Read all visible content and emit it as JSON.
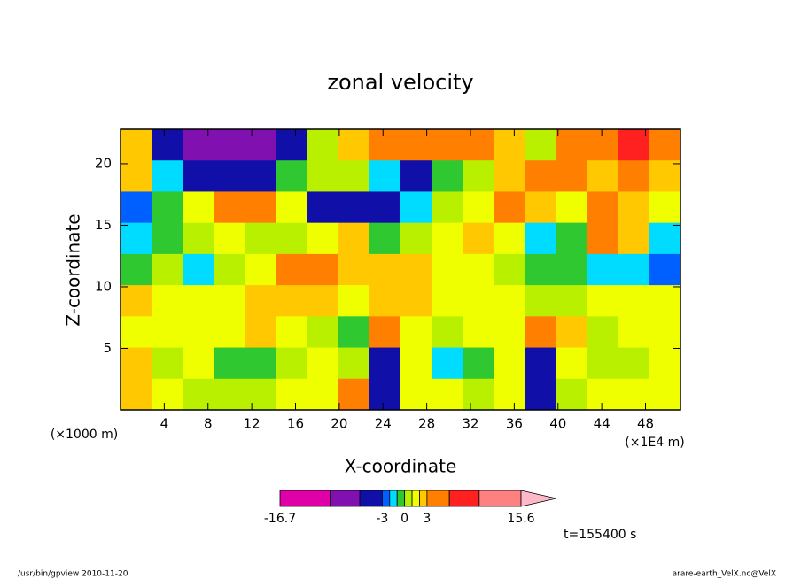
{
  "chart_data": {
    "type": "contour",
    "title": "zonal velocity",
    "x_label": "X-coordinate",
    "y_label": "Z-coordinate",
    "x_unit_left": "(×1000 m)",
    "x_unit_right": "(×1E4 m)",
    "xlim": [
      0,
      51.2
    ],
    "ylim": [
      0,
      22.8
    ],
    "xticks": [
      4,
      8,
      12,
      16,
      20,
      24,
      28,
      32,
      36,
      40,
      44,
      48
    ],
    "yticks": [
      5,
      10,
      15,
      20
    ],
    "z": [
      [
        2,
        -4,
        -8,
        -8,
        -8,
        -6,
        0,
        2,
        4,
        5,
        4,
        3,
        2,
        0,
        4,
        5,
        6,
        3
      ],
      [
        2,
        -2,
        -4,
        -4,
        -4,
        -1,
        0,
        0,
        -2,
        -4,
        -1,
        0,
        2,
        3,
        4,
        2,
        3,
        2
      ],
      [
        -3,
        -1,
        1,
        4,
        3,
        1,
        -4,
        -5,
        -4,
        -2,
        0,
        1,
        3,
        2,
        1,
        3,
        2,
        1
      ],
      [
        -2,
        -1,
        0,
        1,
        0,
        0,
        1,
        2,
        -1,
        0,
        1,
        2,
        1,
        -2,
        -1,
        4,
        2,
        -2
      ],
      [
        -1,
        0,
        -2,
        0,
        1,
        3,
        4,
        2,
        2,
        2,
        1,
        1,
        0,
        -1,
        -1,
        -2,
        -2,
        -3
      ],
      [
        2,
        1,
        1,
        1,
        2,
        2,
        2,
        1,
        2,
        2,
        1,
        1,
        1,
        0,
        0,
        1,
        1,
        1
      ],
      [
        1,
        1,
        1,
        1,
        2,
        1,
        0,
        -1,
        3,
        1,
        0,
        1,
        1,
        3,
        2,
        0,
        1,
        1
      ],
      [
        2,
        0,
        1,
        -1,
        -1,
        0,
        1,
        0,
        -4,
        1,
        -2,
        -1,
        1,
        -4,
        1,
        0,
        0,
        1
      ],
      [
        2,
        1,
        0,
        0,
        0,
        1,
        1,
        3,
        -5,
        1,
        1,
        0,
        1,
        -6,
        0,
        1,
        1,
        1
      ]
    ],
    "levels": [
      -16.7,
      -10,
      -6,
      -3,
      -2,
      -1,
      0,
      1,
      2,
      3,
      6,
      10,
      15.6
    ],
    "colors": [
      "#e000a8",
      "#8010b0",
      "#1010a8",
      "#0060ff",
      "#00dcff",
      "#30c830",
      "#b8f000",
      "#f0ff00",
      "#ffc800",
      "#ff8000",
      "#ff2020",
      "#ff8080"
    ],
    "over_color": "#ffb8c8",
    "colorbar_ticks": [
      -16.7,
      -3,
      0,
      3,
      15.6
    ],
    "annotation": "t=155400 s",
    "footer_left": "/usr/bin/gpview  2010-11-20",
    "footer_right": "arare-earth_VelX.nc@VelX"
  }
}
